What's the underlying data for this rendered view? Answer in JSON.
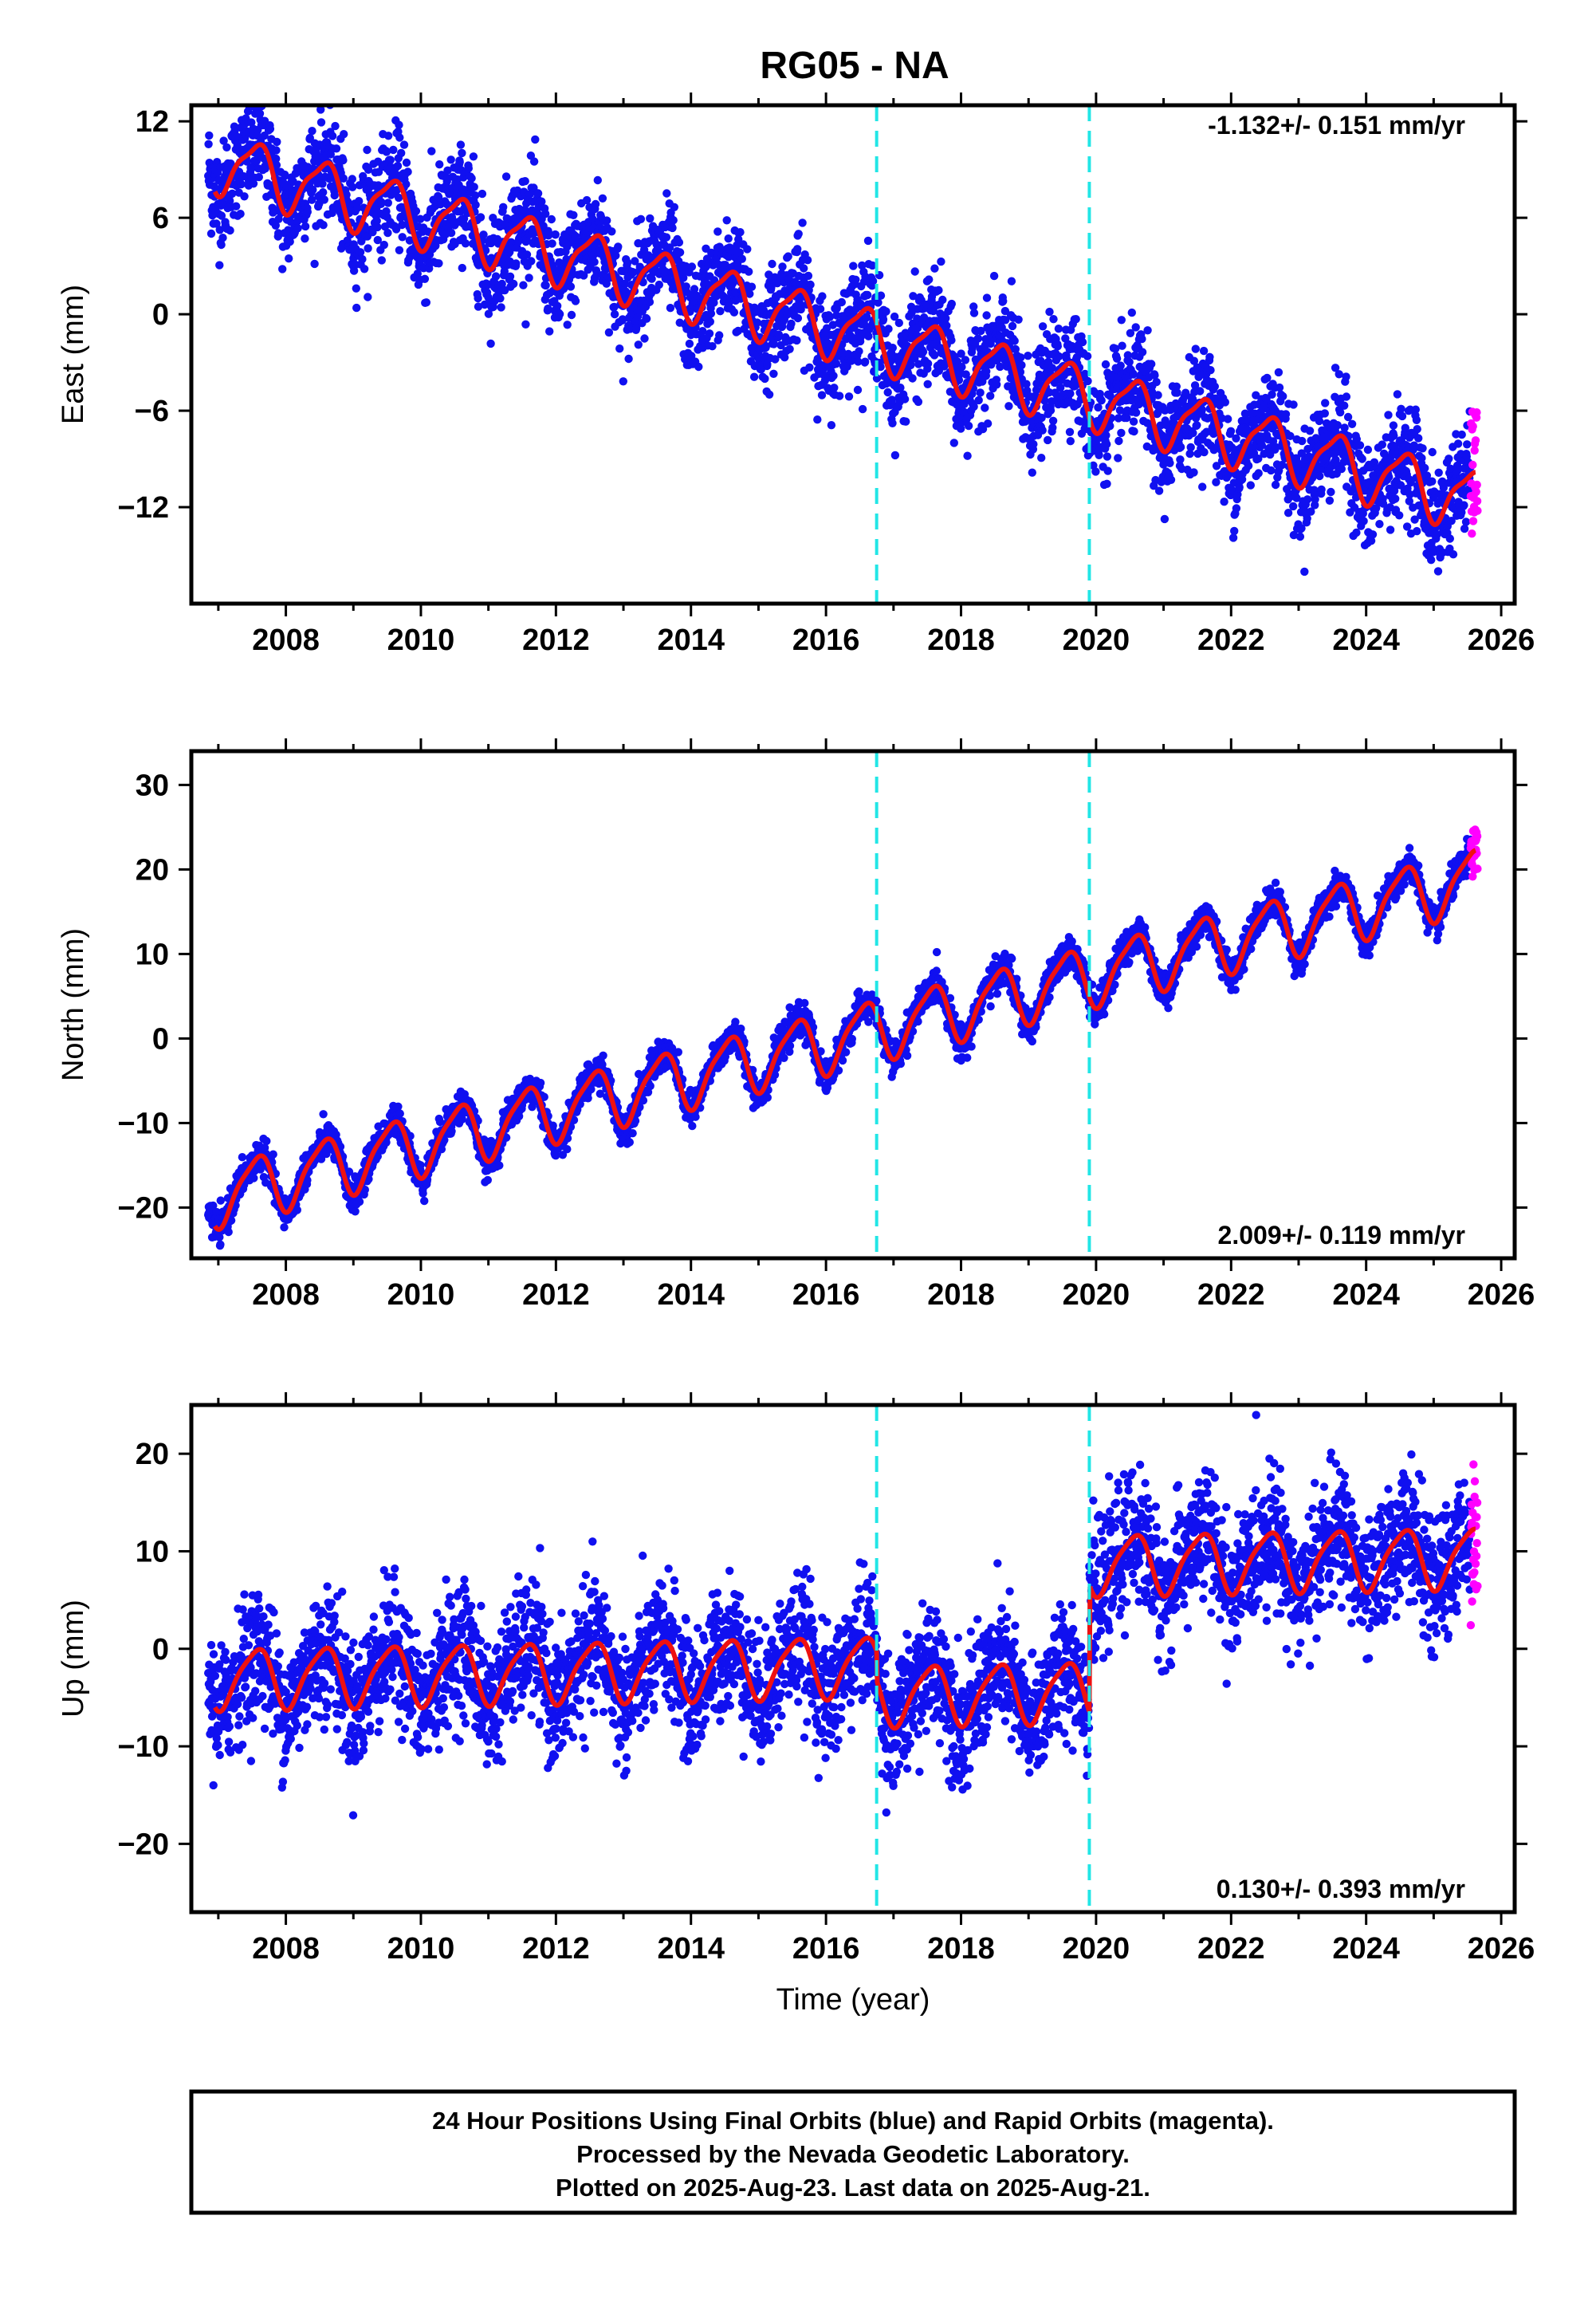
{
  "title": "RG05 - NA",
  "colors": {
    "final_orbits": "#1010f0",
    "rapid_orbits": "#ff00ff",
    "model": "#ee1111",
    "offsets": "#22e6e6"
  },
  "caption": {
    "line1": "24 Hour Positions Using Final Orbits (blue) and Rapid Orbits (magenta).",
    "line2": "Processed by the Nevada Geodetic Laboratory.",
    "line3": "Plotted on 2025-Aug-23. Last data on 2025-Aug-21."
  },
  "chart_data": [
    {
      "type": "scatter",
      "name": "east",
      "ylabel": "East (mm)",
      "xlabel": "",
      "rate_text": "-1.132+/- 0.151 mm/yr",
      "rate_position": "top-right",
      "xlim": [
        2006.6,
        2026.2
      ],
      "ylim": [
        -18,
        13
      ],
      "x_ticks": [
        2008,
        2010,
        2012,
        2014,
        2016,
        2018,
        2020,
        2022,
        2024,
        2026
      ],
      "y_ticks": [
        12,
        6,
        0,
        -6,
        -12
      ],
      "y_tick_labels": [
        "12",
        "6",
        "0",
        "−6",
        "−12"
      ],
      "offset_lines_x": [
        2016.75,
        2019.9
      ],
      "model": {
        "x0": 2007.0,
        "y0": 9.5,
        "rate": -1.132,
        "annual_amp": 1.8,
        "semi_amp": 0.5,
        "jumps": [],
        "noise": 1.9
      },
      "model_curve": {
        "description": "red seasonal model fit"
      },
      "series": [
        {
          "name": "Final Orbits",
          "color": "#1010f0"
        },
        {
          "name": "Rapid Orbits",
          "color": "#ff00ff"
        }
      ]
    },
    {
      "type": "scatter",
      "name": "north",
      "ylabel": "North (mm)",
      "xlabel": "",
      "rate_text": "2.009+/- 0.119 mm/yr",
      "rate_position": "bottom-right",
      "xlim": [
        2006.6,
        2026.2
      ],
      "ylim": [
        -26,
        34
      ],
      "x_ticks": [
        2008,
        2010,
        2012,
        2014,
        2016,
        2018,
        2020,
        2022,
        2024,
        2026
      ],
      "y_ticks": [
        30,
        20,
        10,
        0,
        -10,
        -20
      ],
      "y_tick_labels": [
        "30",
        "20",
        "10",
        "0",
        "−10",
        "−20"
      ],
      "offset_lines_x": [
        2016.75,
        2019.9
      ],
      "model": {
        "x0": 2007.0,
        "y0": -18.5,
        "rate": 2.009,
        "annual_amp": 3.5,
        "semi_amp": 0.8,
        "jumps": [],
        "noise": 1.1
      },
      "series": [
        {
          "name": "Final Orbits",
          "color": "#1010f0"
        },
        {
          "name": "Rapid Orbits",
          "color": "#ff00ff"
        }
      ]
    },
    {
      "type": "scatter",
      "name": "up",
      "ylabel": "Up (mm)",
      "xlabel": "Time (year)",
      "rate_text": "0.130+/- 0.393 mm/yr",
      "rate_position": "bottom-right",
      "xlim": [
        2006.6,
        2026.2
      ],
      "ylim": [
        -27,
        25
      ],
      "x_ticks": [
        2008,
        2010,
        2012,
        2014,
        2016,
        2018,
        2020,
        2022,
        2024,
        2026
      ],
      "y_ticks": [
        20,
        10,
        0,
        -10,
        -20
      ],
      "y_tick_labels": [
        "20",
        "10",
        "0",
        "−10",
        "−20"
      ],
      "offset_lines_x": [
        2016.75,
        2019.9
      ],
      "model": {
        "x0": 2007.0,
        "y0": -3.0,
        "rate": 0.13,
        "annual_amp": 3.0,
        "semi_amp": 0.6,
        "jumps": [
          [
            2016.75,
            -3.0
          ],
          [
            2019.9,
            13.0
          ]
        ],
        "noise": 3.8
      },
      "series": [
        {
          "name": "Final Orbits",
          "color": "#1010f0"
        },
        {
          "name": "Rapid Orbits",
          "color": "#ff00ff"
        }
      ]
    }
  ]
}
